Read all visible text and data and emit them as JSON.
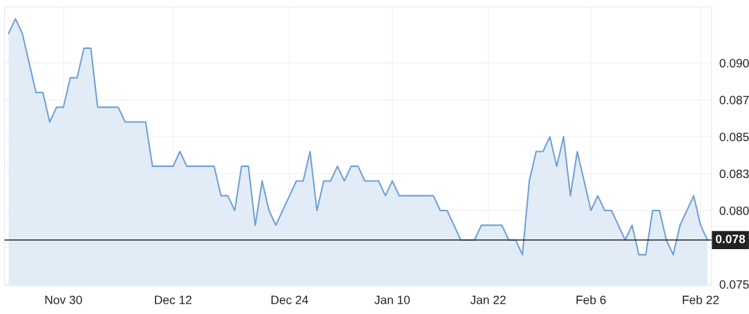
{
  "chart_data": {
    "type": "area",
    "categories": [
      null,
      null,
      null,
      null,
      null,
      null,
      null,
      null,
      "Nov 30",
      null,
      null,
      null,
      null,
      null,
      null,
      null,
      null,
      null,
      null,
      null,
      null,
      null,
      null,
      null,
      "Dec 12",
      null,
      null,
      null,
      null,
      null,
      null,
      null,
      null,
      null,
      null,
      null,
      null,
      null,
      null,
      null,
      null,
      "Dec 24",
      null,
      null,
      null,
      null,
      null,
      null,
      null,
      null,
      null,
      null,
      null,
      null,
      null,
      null,
      "Jan 10",
      null,
      null,
      null,
      null,
      null,
      null,
      null,
      null,
      null,
      null,
      null,
      null,
      null,
      "Jan 22",
      null,
      null,
      null,
      null,
      null,
      null,
      null,
      null,
      null,
      null,
      null,
      null,
      null,
      null,
      "Feb 6",
      null,
      null,
      null,
      null,
      null,
      null,
      null,
      null,
      null,
      null,
      null,
      null,
      null,
      null,
      null,
      "Feb 22",
      null
    ],
    "series": [
      {
        "color": "#6fa1d6",
        "values": [
          0.092,
          0.093,
          0.092,
          0.09,
          0.088,
          0.088,
          0.086,
          0.087,
          0.087,
          0.089,
          0.089,
          0.091,
          0.091,
          0.087,
          0.087,
          0.087,
          0.087,
          0.086,
          0.086,
          0.086,
          0.086,
          0.083,
          0.083,
          0.083,
          0.083,
          0.084,
          0.083,
          0.083,
          0.083,
          0.083,
          0.083,
          0.081,
          0.081,
          0.08,
          0.083,
          0.083,
          0.079,
          0.082,
          0.08,
          0.079,
          0.08,
          0.081,
          0.082,
          0.082,
          0.084,
          0.08,
          0.082,
          0.082,
          0.083,
          0.082,
          0.083,
          0.083,
          0.082,
          0.082,
          0.082,
          0.081,
          0.082,
          0.081,
          0.081,
          0.081,
          0.081,
          0.081,
          0.081,
          0.08,
          0.08,
          0.079,
          0.078,
          0.078,
          0.078,
          0.079,
          0.079,
          0.079,
          0.079,
          0.078,
          0.078,
          0.077,
          0.082,
          0.084,
          0.084,
          0.085,
          0.083,
          0.085,
          0.081,
          0.084,
          0.082,
          0.08,
          0.081,
          0.08,
          0.08,
          0.079,
          0.078,
          0.079,
          0.077,
          0.077,
          0.08,
          0.08,
          0.078,
          0.077,
          0.079,
          0.08,
          0.081,
          0.079,
          0.078
        ]
      }
    ],
    "ylim": [
      0.0749,
      0.0938
    ],
    "yticks": [
      {
        "value": 0.075,
        "label": "0.075"
      },
      {
        "value": 0.0775,
        "label": null
      },
      {
        "value": 0.08,
        "label": "0.080"
      },
      {
        "value": 0.0825,
        "label": "0.083"
      },
      {
        "value": 0.085,
        "label": "0.085"
      },
      {
        "value": 0.0875,
        "label": "0.087"
      },
      {
        "value": 0.09,
        "label": "0.090"
      }
    ],
    "ref_lines": [
      {
        "axis": "y",
        "value": 0.078,
        "label": "0.078",
        "color": "#222222"
      }
    ],
    "grid": true,
    "marker": "none",
    "line_style": "solid"
  }
}
